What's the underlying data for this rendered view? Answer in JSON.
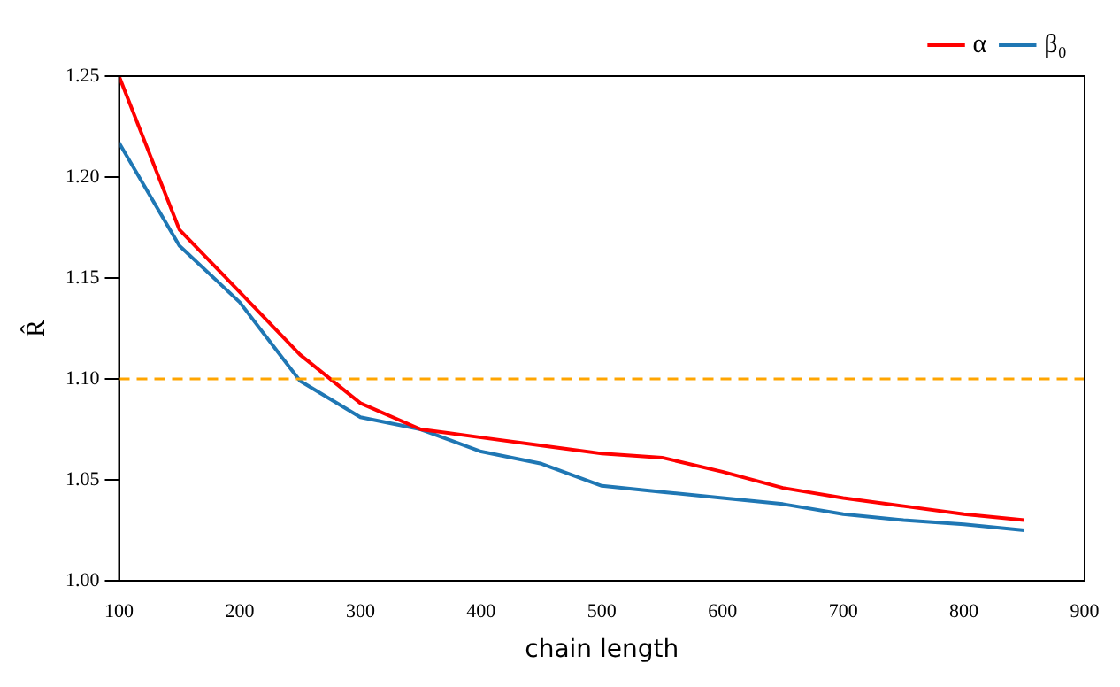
{
  "chart_data": {
    "type": "line",
    "xlabel": "chain length",
    "ylabel": "R̂",
    "x": [
      100,
      150,
      200,
      250,
      300,
      350,
      400,
      450,
      500,
      550,
      600,
      650,
      700,
      750,
      800,
      850
    ],
    "series": [
      {
        "name": "α",
        "color": "#ff0000",
        "values": [
          1.25,
          1.174,
          1.143,
          1.112,
          1.088,
          1.075,
          1.071,
          1.067,
          1.063,
          1.061,
          1.054,
          1.046,
          1.041,
          1.037,
          1.033,
          1.03
        ]
      },
      {
        "name": "β₀",
        "color": "#1f77b4",
        "values": [
          1.217,
          1.166,
          1.138,
          1.099,
          1.081,
          1.075,
          1.064,
          1.058,
          1.047,
          1.044,
          1.041,
          1.038,
          1.033,
          1.03,
          1.028,
          1.025
        ]
      }
    ],
    "xlim": [
      100,
      900
    ],
    "xticks": [
      100,
      200,
      300,
      400,
      500,
      600,
      700,
      800,
      900
    ],
    "ylim": [
      1.0,
      1.25
    ],
    "yticks": [
      {
        "value": 1.0,
        "label": "1.00"
      },
      {
        "value": 1.05,
        "label": "1.05"
      },
      {
        "value": 1.1,
        "label": "1.10"
      },
      {
        "value": 1.15,
        "label": "1.15"
      },
      {
        "value": 1.2,
        "label": "1.20"
      },
      {
        "value": 1.25,
        "label": "1.25"
      }
    ],
    "ref_lines": [
      {
        "axis": "y",
        "value": 1.1,
        "color": "#ffa500",
        "line_style": "dashed"
      }
    ],
    "legend": "top right",
    "grid": false,
    "marker": "none",
    "line_style": "solid"
  }
}
